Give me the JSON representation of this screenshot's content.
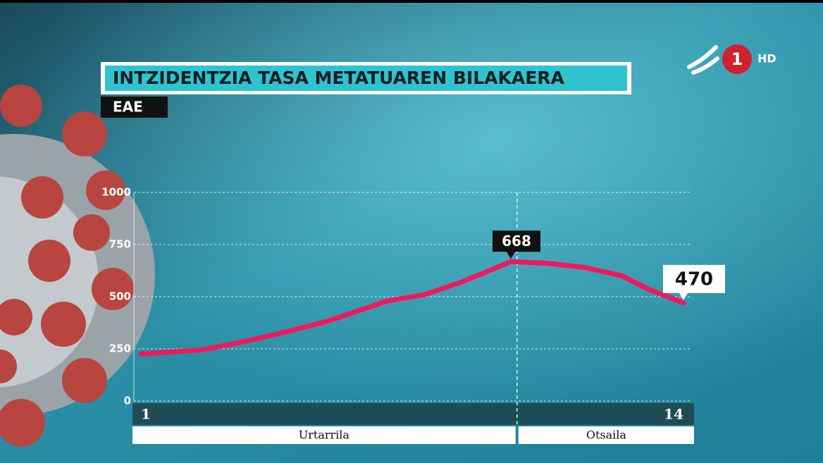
{
  "chart_data": {
    "type": "line",
    "title": "INTZIDENTZIA TASA METATUAREN BILAKAERA",
    "subtitle": "EAE",
    "logo": {
      "channel": "1",
      "quality": "HD"
    },
    "x": [
      1,
      6,
      9,
      12,
      16,
      19,
      21,
      24,
      27,
      31,
      34,
      37,
      40,
      42,
      45
    ],
    "series": [
      {
        "name": "EAE",
        "color": "#f0185e",
        "values": [
          225,
          245,
          280,
          320,
          380,
          440,
          480,
          510,
          570,
          668,
          660,
          640,
          600,
          540,
          470
        ]
      }
    ],
    "xlim": [
      1,
      45
    ],
    "xticks": [
      1,
      {
        "value": 45,
        "label": "14"
      }
    ],
    "months": [
      {
        "name": "Urtarrila",
        "start": 1,
        "end": 31
      },
      {
        "name": "Otsaila",
        "start": 32,
        "end": 45
      }
    ],
    "ylim": [
      0,
      1000
    ],
    "yticks": [
      0,
      250,
      500,
      750,
      1000
    ],
    "grid": true
  }
}
